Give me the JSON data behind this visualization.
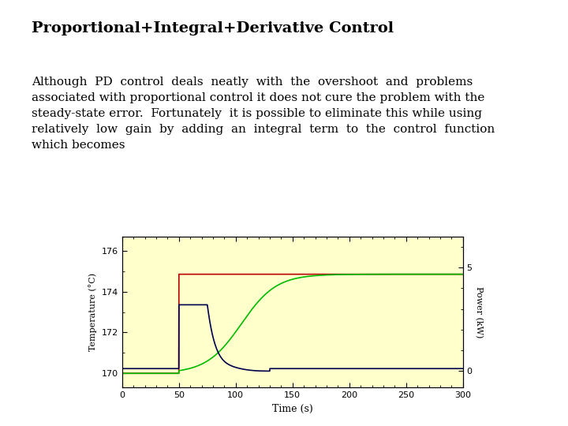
{
  "title": "Proportional+Integral+Derivative Control",
  "bg_color": "#ffffff",
  "plot_bg_color": "#ffffcc",
  "outer_bg_color": "#b8dde0",
  "temp_color": "#00bb00",
  "setpoint_color": "#bb0000",
  "power_color": "#00004c",
  "xlabel": "Time (s)",
  "ylabel_left": "Temperature (°C)",
  "ylabel_right": "Power (kW)",
  "xlim": [
    0,
    300
  ],
  "ylim_temp": [
    169.3,
    176.7
  ],
  "ylim_power": [
    -0.8,
    6.5
  ],
  "temp_yticks": [
    170,
    172,
    174,
    176
  ],
  "power_yticks": [
    0,
    5
  ],
  "xticks": [
    0,
    50,
    100,
    150,
    200,
    250,
    300
  ],
  "title_fontsize": 14,
  "body_fontsize": 11
}
